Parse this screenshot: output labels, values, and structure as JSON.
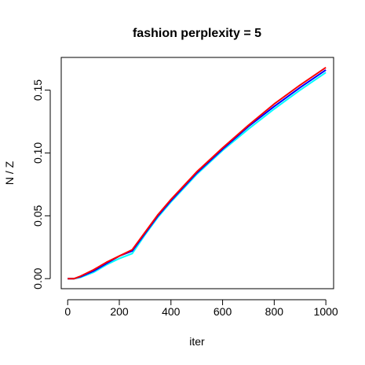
{
  "chart_data": {
    "type": "line",
    "title": "fashion perplexity = 5",
    "xlabel": "iter",
    "ylabel": "N / Z",
    "xlim": [
      -25,
      1030
    ],
    "ylim": [
      -0.008,
      0.176
    ],
    "xticks": [
      0,
      200,
      400,
      600,
      800,
      1000
    ],
    "xtick_labels": [
      "0",
      "200",
      "400",
      "600",
      "800",
      "1000"
    ],
    "yticks": [
      0.0,
      0.05,
      0.1,
      0.15
    ],
    "ytick_labels": [
      "0.00",
      "0.05",
      "0.10",
      "0.15"
    ],
    "grid": false,
    "legend": "none",
    "series": [
      {
        "color": "#00FFFF",
        "x": [
          0,
          25,
          50,
          100,
          150,
          200,
          250,
          300,
          350,
          400,
          500,
          600,
          700,
          800,
          900,
          1000
        ],
        "y": [
          0.0,
          0.0,
          0.001,
          0.005,
          0.011,
          0.016,
          0.02,
          0.035,
          0.049,
          0.061,
          0.083,
          0.102,
          0.119,
          0.135,
          0.15,
          0.164
        ]
      },
      {
        "color": "#0000FF",
        "x": [
          0,
          25,
          50,
          100,
          150,
          200,
          250,
          300,
          350,
          400,
          500,
          600,
          700,
          800,
          900,
          1000
        ],
        "y": [
          0.0,
          0.0,
          0.0015,
          0.006,
          0.012,
          0.018,
          0.022,
          0.036,
          0.05,
          0.062,
          0.084,
          0.103,
          0.121,
          0.137,
          0.152,
          0.166
        ]
      },
      {
        "color": "#FF0000",
        "x": [
          0,
          25,
          50,
          100,
          150,
          200,
          250,
          300,
          350,
          400,
          500,
          600,
          700,
          800,
          900,
          1000
        ],
        "y": [
          0.0,
          0.0,
          0.002,
          0.007,
          0.013,
          0.018,
          0.023,
          0.037,
          0.051,
          0.063,
          0.085,
          0.104,
          0.122,
          0.139,
          0.154,
          0.168
        ]
      }
    ]
  }
}
